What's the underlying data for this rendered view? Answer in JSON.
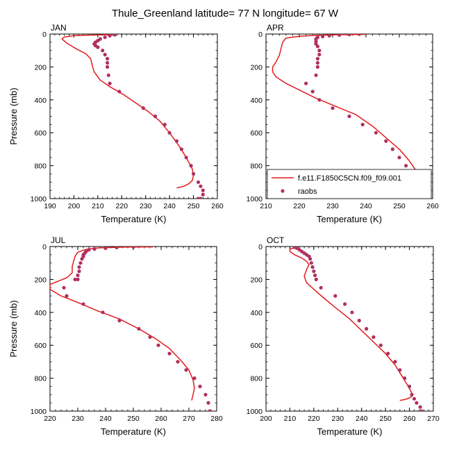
{
  "figure_title": "Thule_Greenland  latitude= 77 N longitude= 67 W",
  "colors": {
    "model": "#e31a1c",
    "obs": "#b03060",
    "axis": "#000000"
  },
  "legend": {
    "model_label": "f.e11.F1850C5CN.f09_f09.001",
    "obs_label": "raobs",
    "placement": "in APR panel, lower-left"
  },
  "chart_data": [
    {
      "type": "line",
      "panel": "JAN",
      "title": "JAN",
      "xlabel": "Temperature (K)",
      "ylabel": "Pressure (mb)",
      "xlim": [
        190,
        260
      ],
      "ylim": [
        1000,
        0
      ],
      "xticks": [
        190,
        200,
        210,
        220,
        230,
        240,
        250,
        260
      ],
      "yticks": [
        0,
        200,
        400,
        600,
        800,
        1000
      ],
      "series": [
        {
          "name": "f.e11.F1850C5CN.f09_f09.001",
          "kind": "line",
          "x": [
            216,
            210,
            200,
            196,
            195,
            197,
            201,
            205,
            207,
            207.5,
            208,
            208.5,
            211,
            215,
            221,
            226,
            231,
            236,
            240,
            244,
            247,
            249.5,
            250,
            249.5,
            248,
            246,
            243
          ],
          "y": [
            3,
            5,
            10,
            18,
            30,
            55,
            90,
            120,
            150,
            180,
            210,
            230,
            280,
            320,
            370,
            420,
            470,
            530,
            600,
            680,
            750,
            820,
            860,
            890,
            910,
            925,
            935
          ]
        },
        {
          "name": "raobs",
          "kind": "scatter",
          "x": [
            217,
            215,
            213,
            211,
            210,
            209,
            208.5,
            209,
            210,
            212,
            213,
            214,
            214,
            214,
            214.5,
            215,
            219,
            229,
            234,
            238,
            240,
            243,
            245,
            247,
            249,
            250,
            252,
            253,
            254,
            254,
            253,
            252
          ],
          "y": [
            5,
            10,
            20,
            30,
            40,
            50,
            60,
            70,
            80,
            100,
            125,
            150,
            175,
            200,
            250,
            300,
            350,
            450,
            500,
            550,
            600,
            650,
            700,
            750,
            800,
            850,
            900,
            925,
            950,
            975,
            1000,
            1000
          ]
        }
      ]
    },
    {
      "type": "line",
      "panel": "APR",
      "title": "APR",
      "xlabel": "Temperature (K)",
      "ylabel": "",
      "xlim": [
        210,
        260
      ],
      "ylim": [
        1000,
        0
      ],
      "xticks": [
        210,
        220,
        230,
        240,
        250,
        260
      ],
      "yticks": [
        0,
        200,
        400,
        600,
        800,
        1000
      ],
      "series": [
        {
          "name": "f.e11.F1850C5CN.f09_f09.001",
          "kind": "line",
          "x": [
            240,
            232,
            225,
            220,
            216,
            215,
            214.5,
            214,
            213,
            212,
            212,
            213,
            216,
            220,
            225,
            231,
            237,
            242,
            246,
            250,
            253,
            255,
            256,
            256.5,
            256,
            254,
            252
          ],
          "y": [
            2,
            4,
            8,
            14,
            25,
            50,
            90,
            130,
            170,
            200,
            230,
            260,
            300,
            340,
            390,
            440,
            490,
            560,
            630,
            700,
            770,
            830,
            880,
            920,
            945,
            960,
            965
          ]
        },
        {
          "name": "raobs",
          "kind": "scatter",
          "x": [
            238,
            235,
            232,
            229,
            227,
            225.5,
            225,
            225,
            225,
            225.5,
            226,
            226,
            225.5,
            225.5,
            225.5,
            225,
            222,
            224,
            226,
            230,
            235,
            239,
            243,
            246,
            248,
            250,
            252,
            254,
            255,
            256,
            257.5,
            258
          ],
          "y": [
            1,
            3,
            6,
            10,
            15,
            20,
            30,
            45,
            60,
            75,
            100,
            125,
            150,
            175,
            200,
            250,
            300,
            350,
            400,
            450,
            500,
            550,
            600,
            650,
            700,
            750,
            800,
            850,
            900,
            950,
            960,
            1000
          ]
        }
      ]
    },
    {
      "type": "line",
      "panel": "JUL",
      "title": "JUL",
      "xlabel": "Temperature (K)",
      "ylabel": "Pressure (mb)",
      "xlim": [
        220,
        280
      ],
      "ylim": [
        1000,
        0
      ],
      "xticks": [
        220,
        230,
        240,
        250,
        260,
        270,
        280
      ],
      "yticks": [
        0,
        200,
        400,
        600,
        800,
        1000
      ],
      "series": [
        {
          "name": "f.e11.F1850C5CN.f09_f09.001",
          "kind": "line",
          "x": [
            257,
            246,
            238,
            234,
            232,
            230,
            229,
            228.5,
            228,
            228,
            226,
            223,
            220,
            220,
            224,
            230,
            237,
            245,
            252,
            258,
            263,
            267,
            270,
            271.5,
            272,
            271.5,
            271
          ],
          "y": [
            2,
            4,
            8,
            14,
            22,
            35,
            60,
            90,
            120,
            160,
            190,
            210,
            230,
            260,
            300,
            340,
            390,
            440,
            500,
            560,
            620,
            690,
            750,
            810,
            860,
            900,
            935
          ]
        },
        {
          "name": "raobs",
          "kind": "scatter",
          "x": [
            250,
            244,
            240,
            236,
            234,
            233,
            232.5,
            232,
            232,
            231.5,
            231,
            230.5,
            230.5,
            230,
            230,
            229,
            225,
            226,
            232,
            239,
            245,
            252,
            256,
            259,
            263,
            266,
            269,
            272,
            274,
            276,
            277,
            277.5
          ],
          "y": [
            3,
            6,
            10,
            15,
            20,
            30,
            40,
            50,
            60,
            75,
            100,
            125,
            150,
            175,
            200,
            200,
            250,
            300,
            350,
            400,
            450,
            500,
            550,
            600,
            650,
            700,
            750,
            800,
            850,
            900,
            950,
            1000
          ]
        }
      ]
    },
    {
      "type": "line",
      "panel": "OCT",
      "title": "OCT",
      "xlabel": "Temperature (K)",
      "ylabel": "",
      "xlim": [
        200,
        270
      ],
      "ylim": [
        1000,
        0
      ],
      "xticks": [
        200,
        210,
        220,
        230,
        240,
        250,
        260,
        270
      ],
      "yticks": [
        0,
        200,
        400,
        600,
        800,
        1000
      ],
      "series": [
        {
          "name": "f.e11.F1850C5CN.f09_f09.001",
          "kind": "line",
          "x": [
            212,
            210,
            210,
            212,
            215,
            217,
            218,
            217,
            216,
            217,
            220,
            224,
            229,
            235,
            240,
            245,
            250,
            254,
            257,
            259.5,
            261,
            261,
            260,
            258,
            256
          ],
          "y": [
            8,
            15,
            30,
            50,
            70,
            90,
            110,
            140,
            180,
            220,
            260,
            310,
            370,
            440,
            510,
            580,
            650,
            720,
            790,
            850,
            890,
            910,
            920,
            930,
            935
          ]
        },
        {
          "name": "raobs",
          "kind": "scatter",
          "x": [
            212,
            213,
            214,
            215,
            216,
            217,
            218,
            218.5,
            219,
            219.5,
            220,
            220.5,
            221,
            223,
            229,
            233,
            236,
            239,
            242,
            245,
            248,
            251,
            254,
            256,
            258,
            260,
            261,
            262,
            263,
            264.5,
            265,
            265
          ],
          "y": [
            5,
            10,
            20,
            30,
            40,
            50,
            60,
            75,
            100,
            125,
            150,
            175,
            200,
            250,
            300,
            350,
            400,
            450,
            500,
            550,
            600,
            650,
            700,
            750,
            800,
            850,
            900,
            925,
            950,
            975,
            1000,
            1000
          ]
        }
      ]
    }
  ]
}
